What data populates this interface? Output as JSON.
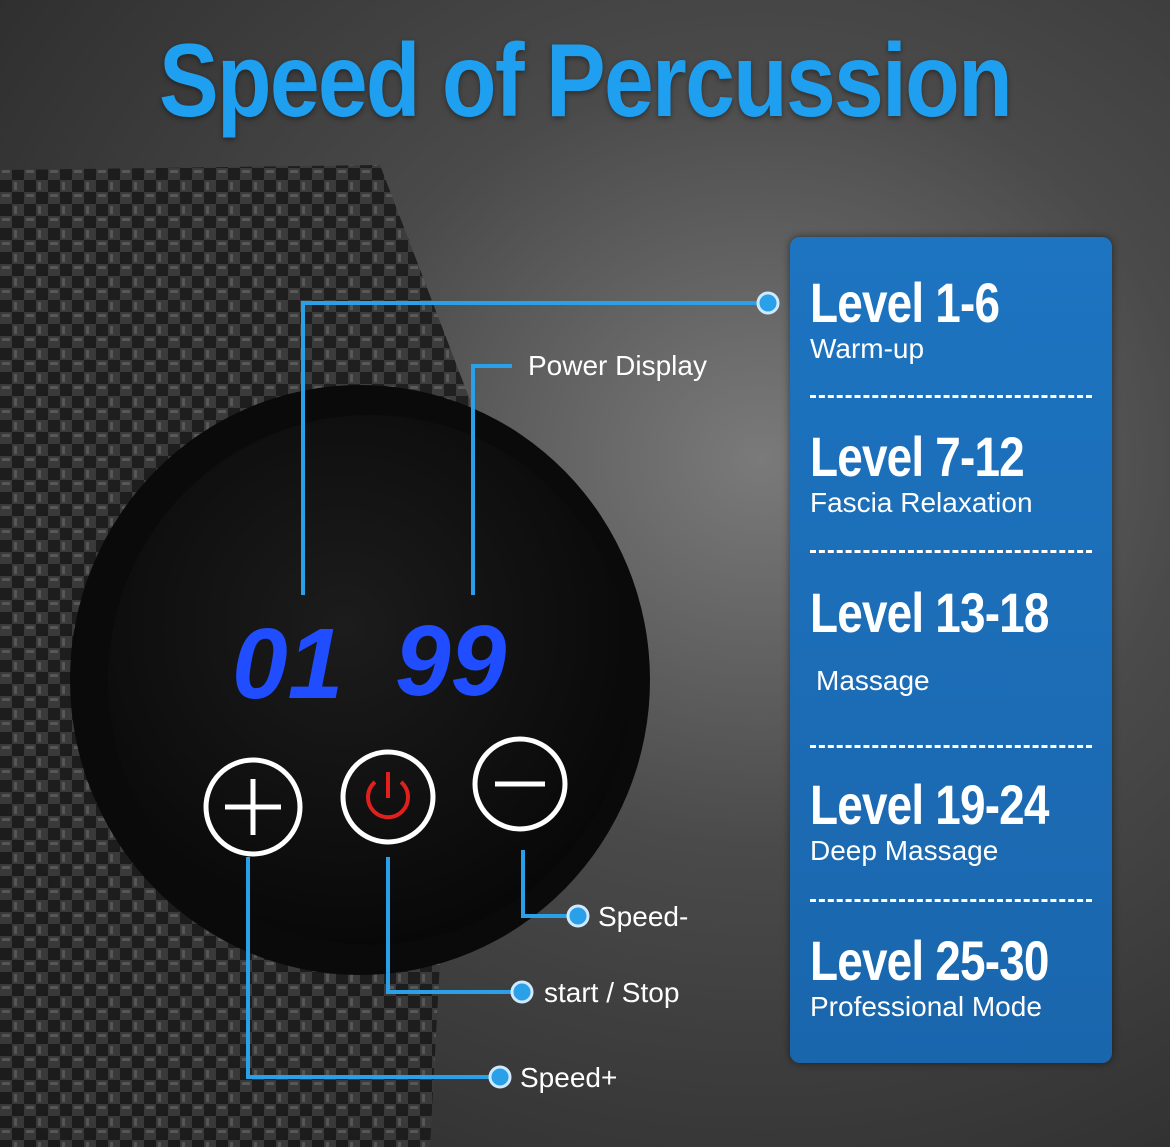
{
  "title": "Speed of Percussion",
  "display": {
    "left": "01",
    "right": "99"
  },
  "callouts": {
    "power_display": "Power Display",
    "speed_minus": "Speed-",
    "start_stop": "start / Stop",
    "speed_plus": "Speed+"
  },
  "levels": [
    {
      "range": "Level 1-6",
      "mode": "Warm-up"
    },
    {
      "range": "Level 7-12",
      "mode": "Fascia Relaxation"
    },
    {
      "range": "Level 13-18",
      "mode": "Massage"
    },
    {
      "range": "Level 19-24",
      "mode": "Deep Massage"
    },
    {
      "range": "Level 25-30",
      "mode": "Professional Mode"
    }
  ],
  "colors": {
    "title": "#1e9ff0",
    "panel": "#1d74c0",
    "lines": "#2aa0e8",
    "digits": "#1f4dff",
    "power": "#e0201c"
  }
}
